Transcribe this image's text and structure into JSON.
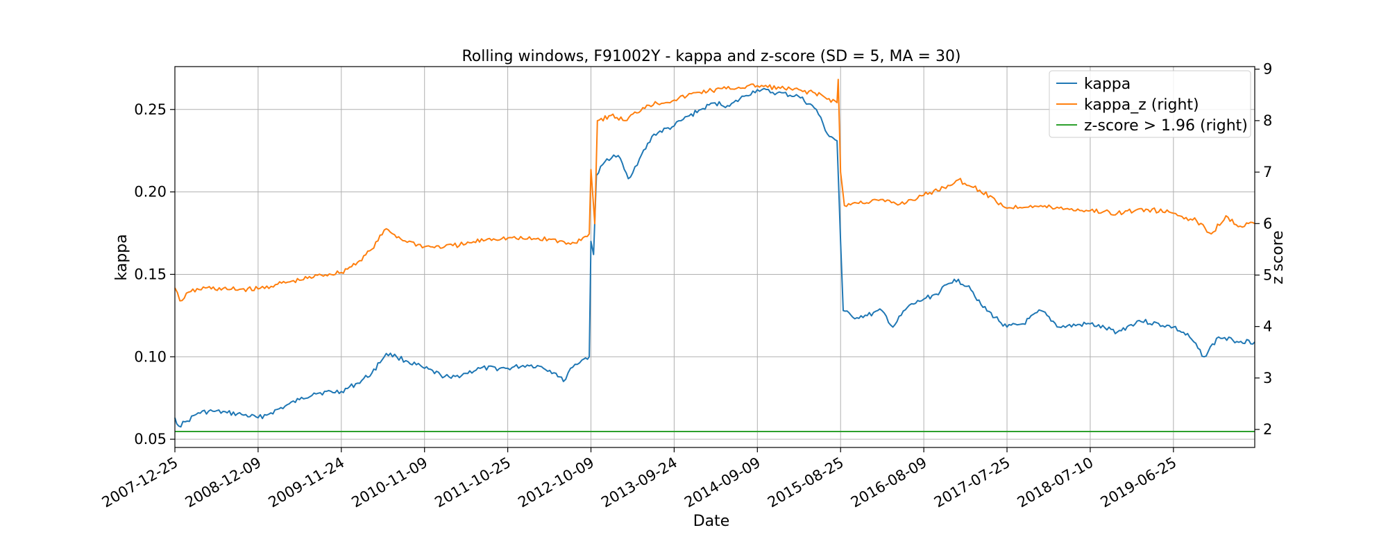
{
  "chart_data": {
    "type": "line",
    "title": "Rolling windows, F91002Y - kappa and z-score (SD = 5, MA = 30)",
    "xlabel": "Date",
    "ylabel": "kappa",
    "ylabel_right": "z score",
    "xlim": [
      "2007-12-25",
      "2020-06-01"
    ],
    "ylim": [
      0.045,
      0.276
    ],
    "ylim_right": [
      1.65,
      9.05
    ],
    "xticks": [
      "2007-12-25",
      "2008-12-09",
      "2009-11-24",
      "2010-11-09",
      "2011-10-25",
      "2012-10-09",
      "2013-09-24",
      "2014-09-09",
      "2015-08-25",
      "2016-08-09",
      "2017-07-25",
      "2018-07-10",
      "2019-06-25"
    ],
    "yticks": [
      0.05,
      0.1,
      0.15,
      0.2,
      0.25
    ],
    "yticks_labels": [
      "0.05",
      "0.10",
      "0.15",
      "0.20",
      "0.25"
    ],
    "yticks_right": [
      2,
      3,
      4,
      5,
      6,
      7,
      8,
      9
    ],
    "grid": true,
    "legend": "top-right",
    "series": [
      {
        "name": "kappa",
        "axis": "left",
        "color": "#1f77b4",
        "points": [
          [
            "2007-12-25",
            0.063
          ],
          [
            "2008-01-10",
            0.058
          ],
          [
            "2008-02-15",
            0.061
          ],
          [
            "2008-04-01",
            0.066
          ],
          [
            "2008-06-01",
            0.067
          ],
          [
            "2008-08-01",
            0.066
          ],
          [
            "2008-10-01",
            0.065
          ],
          [
            "2008-12-09",
            0.063
          ],
          [
            "2009-02-01",
            0.066
          ],
          [
            "2009-04-01",
            0.07
          ],
          [
            "2009-06-01",
            0.074
          ],
          [
            "2009-08-01",
            0.078
          ],
          [
            "2009-11-24",
            0.079
          ],
          [
            "2010-02-01",
            0.084
          ],
          [
            "2010-04-01",
            0.09
          ],
          [
            "2010-06-01",
            0.102
          ],
          [
            "2010-07-15",
            0.1
          ],
          [
            "2010-09-01",
            0.097
          ],
          [
            "2010-11-09",
            0.093
          ],
          [
            "2011-01-15",
            0.089
          ],
          [
            "2011-03-01",
            0.087
          ],
          [
            "2011-05-01",
            0.09
          ],
          [
            "2011-07-01",
            0.093
          ],
          [
            "2011-10-25",
            0.093
          ],
          [
            "2012-01-15",
            0.095
          ],
          [
            "2012-03-15",
            0.094
          ],
          [
            "2012-05-15",
            0.09
          ],
          [
            "2012-06-15",
            0.085
          ],
          [
            "2012-07-15",
            0.093
          ],
          [
            "2012-09-01",
            0.098
          ],
          [
            "2012-10-02",
            0.1
          ],
          [
            "2012-10-09",
            0.17
          ],
          [
            "2012-10-20",
            0.162
          ],
          [
            "2012-11-01",
            0.21
          ],
          [
            "2012-12-15",
            0.22
          ],
          [
            "2013-02-01",
            0.222
          ],
          [
            "2013-03-15",
            0.208
          ],
          [
            "2013-05-01",
            0.22
          ],
          [
            "2013-07-01",
            0.235
          ],
          [
            "2013-09-24",
            0.24
          ],
          [
            "2013-11-01",
            0.244
          ],
          [
            "2014-01-15",
            0.25
          ],
          [
            "2014-03-15",
            0.254
          ],
          [
            "2014-05-15",
            0.252
          ],
          [
            "2014-07-15",
            0.258
          ],
          [
            "2014-09-09",
            0.262
          ],
          [
            "2014-12-01",
            0.26
          ],
          [
            "2015-03-01",
            0.258
          ],
          [
            "2015-05-15",
            0.25
          ],
          [
            "2015-07-01",
            0.235
          ],
          [
            "2015-08-10",
            0.231
          ],
          [
            "2015-08-25",
            0.17
          ],
          [
            "2015-09-05",
            0.128
          ],
          [
            "2015-10-15",
            0.124
          ],
          [
            "2015-12-15",
            0.125
          ],
          [
            "2016-02-15",
            0.128
          ],
          [
            "2016-04-01",
            0.118
          ],
          [
            "2016-06-01",
            0.13
          ],
          [
            "2016-08-09",
            0.135
          ],
          [
            "2016-10-01",
            0.138
          ],
          [
            "2016-12-15",
            0.147
          ],
          [
            "2017-02-15",
            0.143
          ],
          [
            "2017-04-15",
            0.13
          ],
          [
            "2017-07-25",
            0.118
          ],
          [
            "2017-10-01",
            0.12
          ],
          [
            "2017-12-15",
            0.128
          ],
          [
            "2018-03-01",
            0.118
          ],
          [
            "2018-07-10",
            0.12
          ],
          [
            "2018-11-01",
            0.115
          ],
          [
            "2019-02-01",
            0.122
          ],
          [
            "2019-06-25",
            0.118
          ],
          [
            "2019-09-01",
            0.112
          ],
          [
            "2019-11-01",
            0.1
          ],
          [
            "2020-01-01",
            0.112
          ],
          [
            "2020-03-01",
            0.11
          ],
          [
            "2020-06-01",
            0.109
          ]
        ]
      },
      {
        "name": "kappa_z (right)",
        "axis": "right",
        "color": "#ff7f0e",
        "points": [
          [
            "2007-12-25",
            4.75
          ],
          [
            "2008-01-15",
            4.5
          ],
          [
            "2008-03-01",
            4.68
          ],
          [
            "2008-05-01",
            4.75
          ],
          [
            "2008-08-01",
            4.72
          ],
          [
            "2008-12-09",
            4.73
          ],
          [
            "2009-03-01",
            4.82
          ],
          [
            "2009-06-01",
            4.9
          ],
          [
            "2009-09-01",
            5.0
          ],
          [
            "2009-11-24",
            5.05
          ],
          [
            "2010-02-01",
            5.25
          ],
          [
            "2010-04-01",
            5.5
          ],
          [
            "2010-06-01",
            5.9
          ],
          [
            "2010-08-01",
            5.7
          ],
          [
            "2010-11-09",
            5.55
          ],
          [
            "2011-02-01",
            5.55
          ],
          [
            "2011-05-01",
            5.6
          ],
          [
            "2011-08-01",
            5.7
          ],
          [
            "2011-10-25",
            5.72
          ],
          [
            "2012-01-15",
            5.7
          ],
          [
            "2012-04-15",
            5.7
          ],
          [
            "2012-07-15",
            5.6
          ],
          [
            "2012-09-15",
            5.75
          ],
          [
            "2012-10-02",
            5.8
          ],
          [
            "2012-10-09",
            7.05
          ],
          [
            "2012-10-25",
            6.0
          ],
          [
            "2012-11-05",
            8.0
          ],
          [
            "2013-01-01",
            8.1
          ],
          [
            "2013-03-01",
            8.0
          ],
          [
            "2013-06-01",
            8.3
          ],
          [
            "2013-09-24",
            8.4
          ],
          [
            "2014-01-01",
            8.55
          ],
          [
            "2014-05-01",
            8.62
          ],
          [
            "2014-09-09",
            8.68
          ],
          [
            "2015-01-01",
            8.62
          ],
          [
            "2015-05-01",
            8.55
          ],
          [
            "2015-08-10",
            8.35
          ],
          [
            "2015-08-15",
            8.8
          ],
          [
            "2015-08-25",
            7.0
          ],
          [
            "2015-09-10",
            6.35
          ],
          [
            "2015-11-01",
            6.4
          ],
          [
            "2016-02-01",
            6.45
          ],
          [
            "2016-05-01",
            6.38
          ],
          [
            "2016-08-09",
            6.55
          ],
          [
            "2016-11-01",
            6.7
          ],
          [
            "2017-01-01",
            6.85
          ],
          [
            "2017-04-01",
            6.65
          ],
          [
            "2017-07-25",
            6.3
          ],
          [
            "2017-11-01",
            6.35
          ],
          [
            "2018-03-01",
            6.3
          ],
          [
            "2018-07-10",
            6.25
          ],
          [
            "2018-11-01",
            6.2
          ],
          [
            "2019-03-01",
            6.28
          ],
          [
            "2019-06-25",
            6.2
          ],
          [
            "2019-10-01",
            6.05
          ],
          [
            "2019-12-01",
            5.8
          ],
          [
            "2020-02-01",
            6.15
          ],
          [
            "2020-04-01",
            5.95
          ],
          [
            "2020-06-01",
            6.0
          ]
        ]
      },
      {
        "name": "z-score > 1.96 (right)",
        "axis": "right",
        "color": "#2ca02c",
        "points": [
          [
            "2007-12-25",
            1.96
          ],
          [
            "2020-06-01",
            1.96
          ]
        ]
      }
    ]
  }
}
